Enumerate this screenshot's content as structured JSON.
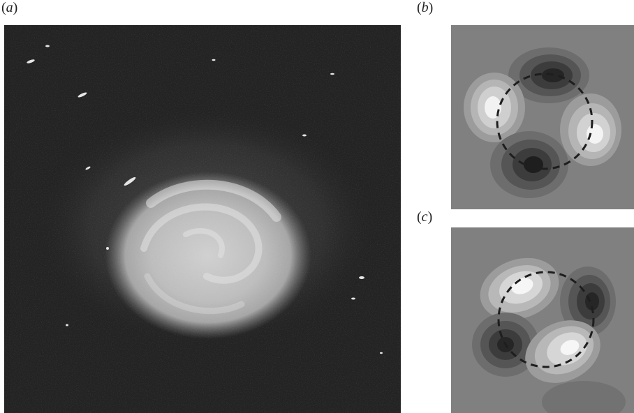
{
  "panels": {
    "a": {
      "label": "a"
    },
    "b": {
      "label": "b"
    },
    "c": {
      "label": "c"
    }
  },
  "colors": {
    "panel_a_background": "#232323",
    "contour_background": "#808080",
    "dashed_circle": "#1e1e1e"
  }
}
